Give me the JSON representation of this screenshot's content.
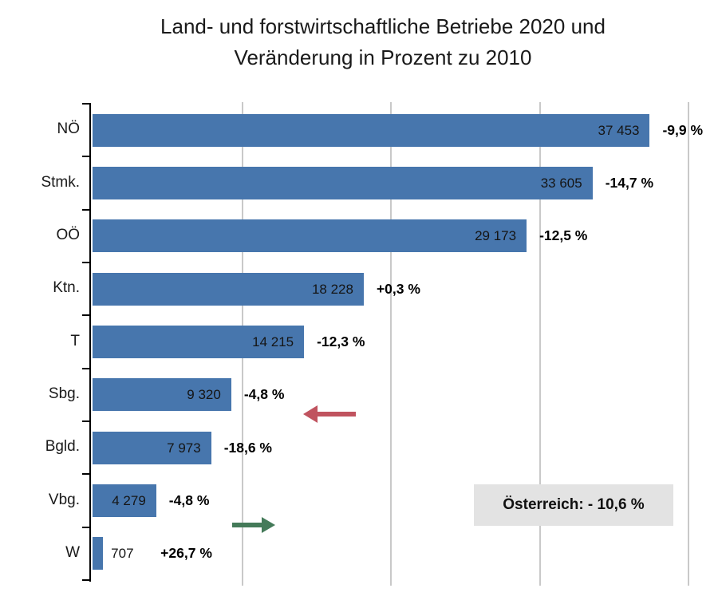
{
  "chart_data": {
    "type": "bar",
    "orientation": "horizontal",
    "title_lines": [
      "Land- und forstwirtschaftliche Betriebe 2020 und",
      "Veränderung in Prozent zu 2010"
    ],
    "categories": [
      "NÖ",
      "Stmk.",
      "OÖ",
      "Ktn.",
      "T",
      "Sbg.",
      "Bgld.",
      "Vbg.",
      "W"
    ],
    "values": [
      37453,
      33605,
      29173,
      18228,
      14215,
      9320,
      7973,
      4279,
      707
    ],
    "value_labels": [
      "37 453",
      "33 605",
      "29 173",
      "18 228",
      "14 215",
      "9 320",
      "7 973",
      "4 279",
      "707"
    ],
    "change_labels": [
      "-9,9 %",
      "-14,7 %",
      "-12,5 %",
      "+0,3 %",
      "-12,3 %",
      "-4,8 %",
      "-18,6 %",
      "-4,8 %",
      "+26,7 %"
    ],
    "xlim": [
      0,
      40000
    ],
    "gridline_values": [
      10000,
      20000,
      30000,
      40000
    ],
    "grid": "vertical-only",
    "legend": "none",
    "bar_color": "#4776ad",
    "gridline_color": "#c9c9c9",
    "annotation_text": "Österreich:  - 10,6 %",
    "annotation_bg": "#e3e3e3",
    "arrows": [
      {
        "name": "decrease-arrow",
        "direction": "left",
        "color": "#c0535f"
      },
      {
        "name": "increase-arrow",
        "direction": "right",
        "color": "#447a59"
      }
    ]
  }
}
